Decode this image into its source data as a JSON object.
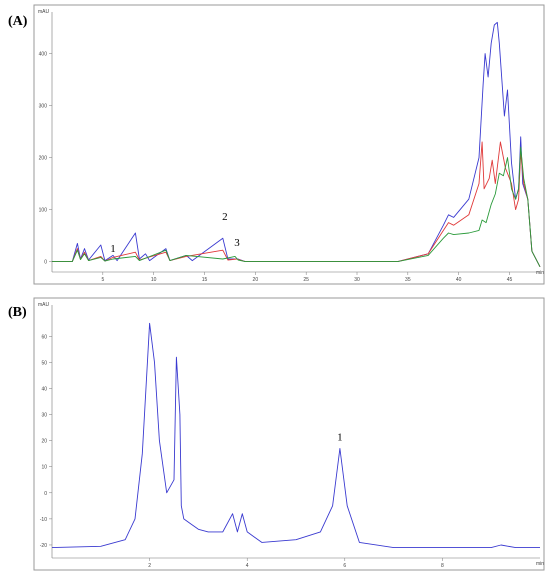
{
  "chart_data": [
    {
      "type": "line",
      "panel_label": "(A)",
      "y_unit": "mAU",
      "x_unit": "min",
      "xlim": [
        0,
        48
      ],
      "ylim": [
        -20,
        480
      ],
      "x_ticks": [
        "5",
        "10",
        "15",
        "20",
        "25",
        "30",
        "35",
        "40",
        "45"
      ],
      "y_ticks": [
        "0",
        "100",
        "200",
        "300",
        "400"
      ],
      "peak_labels": [
        {
          "text": "1",
          "x": 6.0,
          "y": 18
        },
        {
          "text": "2",
          "x": 17.0,
          "y": 80
        },
        {
          "text": "3",
          "x": 18.2,
          "y": 30
        }
      ],
      "series": [
        {
          "color": "#3a3ad0",
          "points": [
            [
              0,
              0
            ],
            [
              2,
              0
            ],
            [
              2.5,
              35
            ],
            [
              2.8,
              5
            ],
            [
              3.2,
              25
            ],
            [
              3.6,
              3
            ],
            [
              4.8,
              32
            ],
            [
              5.2,
              2
            ],
            [
              6,
              12
            ],
            [
              6.4,
              2
            ],
            [
              8.2,
              55
            ],
            [
              8.6,
              5
            ],
            [
              9.2,
              15
            ],
            [
              9.6,
              2
            ],
            [
              11.2,
              25
            ],
            [
              11.6,
              2
            ],
            [
              13.2,
              12
            ],
            [
              13.8,
              2
            ],
            [
              16.8,
              45
            ],
            [
              17.3,
              5
            ],
            [
              18.3,
              5
            ],
            [
              19,
              0
            ],
            [
              34,
              0
            ],
            [
              37,
              15
            ],
            [
              38.5,
              70
            ],
            [
              39,
              90
            ],
            [
              39.5,
              85
            ],
            [
              41,
              120
            ],
            [
              42,
              200
            ],
            [
              42.4,
              340
            ],
            [
              42.6,
              400
            ],
            [
              42.9,
              355
            ],
            [
              43.2,
              420
            ],
            [
              43.5,
              455
            ],
            [
              43.8,
              460
            ],
            [
              44,
              420
            ],
            [
              44.5,
              280
            ],
            [
              44.8,
              330
            ],
            [
              45.2,
              190
            ],
            [
              45.6,
              120
            ],
            [
              45.9,
              140
            ],
            [
              46.1,
              240
            ],
            [
              46.3,
              150
            ],
            [
              46.8,
              120
            ],
            [
              47.2,
              20
            ],
            [
              48,
              -10
            ]
          ]
        },
        {
          "color": "#e03a3a",
          "points": [
            [
              0,
              0
            ],
            [
              2,
              0
            ],
            [
              2.5,
              25
            ],
            [
              2.8,
              4
            ],
            [
              3.2,
              18
            ],
            [
              3.6,
              2
            ],
            [
              4.8,
              10
            ],
            [
              5.2,
              1
            ],
            [
              6,
              8
            ],
            [
              8.2,
              18
            ],
            [
              8.6,
              3
            ],
            [
              11.2,
              18
            ],
            [
              11.6,
              2
            ],
            [
              13.2,
              10
            ],
            [
              16.8,
              22
            ],
            [
              17.3,
              3
            ],
            [
              18.2,
              5
            ],
            [
              19,
              0
            ],
            [
              34,
              0
            ],
            [
              37,
              15
            ],
            [
              38.5,
              60
            ],
            [
              39,
              75
            ],
            [
              39.5,
              70
            ],
            [
              41,
              90
            ],
            [
              42,
              150
            ],
            [
              42.3,
              230
            ],
            [
              42.5,
              140
            ],
            [
              43,
              160
            ],
            [
              43.3,
              195
            ],
            [
              43.6,
              150
            ],
            [
              44.1,
              230
            ],
            [
              44.6,
              180
            ],
            [
              45.2,
              150
            ],
            [
              45.6,
              100
            ],
            [
              45.9,
              120
            ],
            [
              46.1,
              210
            ],
            [
              46.4,
              150
            ],
            [
              46.8,
              120
            ],
            [
              47.2,
              20
            ],
            [
              48,
              -10
            ]
          ]
        },
        {
          "color": "#2a9a3a",
          "points": [
            [
              0,
              0
            ],
            [
              2,
              0
            ],
            [
              2.5,
              22
            ],
            [
              2.8,
              4
            ],
            [
              3.2,
              15
            ],
            [
              3.6,
              2
            ],
            [
              4.8,
              8
            ],
            [
              5.2,
              1
            ],
            [
              6,
              5
            ],
            [
              8.2,
              10
            ],
            [
              8.6,
              2
            ],
            [
              11.2,
              22
            ],
            [
              11.6,
              2
            ],
            [
              13.2,
              12
            ],
            [
              16.8,
              5
            ],
            [
              18,
              10
            ],
            [
              18.3,
              3
            ],
            [
              19,
              0
            ],
            [
              34,
              0
            ],
            [
              37,
              12
            ],
            [
              38.5,
              45
            ],
            [
              39,
              55
            ],
            [
              39.5,
              52
            ],
            [
              41,
              55
            ],
            [
              42,
              60
            ],
            [
              42.3,
              80
            ],
            [
              42.7,
              75
            ],
            [
              43.2,
              110
            ],
            [
              43.6,
              130
            ],
            [
              44,
              170
            ],
            [
              44.4,
              165
            ],
            [
              44.8,
              200
            ],
            [
              45.2,
              140
            ],
            [
              45.6,
              120
            ],
            [
              45.9,
              140
            ],
            [
              46.1,
              220
            ],
            [
              46.4,
              160
            ],
            [
              46.8,
              120
            ],
            [
              47.2,
              20
            ],
            [
              48,
              -10
            ]
          ]
        }
      ]
    },
    {
      "type": "line",
      "panel_label": "(B)",
      "y_unit": "mAU",
      "x_unit": "min",
      "xlim": [
        0,
        10
      ],
      "ylim": [
        -25,
        72
      ],
      "x_ticks": [
        "2",
        "4",
        "6",
        "8"
      ],
      "y_ticks": [
        "-20",
        "-10",
        "0",
        "10",
        "20",
        "30",
        "40",
        "50",
        "60"
      ],
      "peak_labels": [
        {
          "text": "1",
          "x": 5.9,
          "y": 20
        }
      ],
      "series": [
        {
          "color": "#3a3ad0",
          "points": [
            [
              0,
              -21
            ],
            [
              1,
              -20.5
            ],
            [
              1.5,
              -18
            ],
            [
              1.7,
              -10
            ],
            [
              1.85,
              15
            ],
            [
              2,
              65
            ],
            [
              2.1,
              50
            ],
            [
              2.2,
              20
            ],
            [
              2.35,
              0
            ],
            [
              2.5,
              5
            ],
            [
              2.55,
              52
            ],
            [
              2.62,
              30
            ],
            [
              2.65,
              -5
            ],
            [
              2.7,
              -10
            ],
            [
              2.85,
              -12
            ],
            [
              3,
              -14
            ],
            [
              3.2,
              -15
            ],
            [
              3.5,
              -15
            ],
            [
              3.7,
              -8
            ],
            [
              3.8,
              -15
            ],
            [
              3.9,
              -8
            ],
            [
              4,
              -15
            ],
            [
              4.3,
              -19
            ],
            [
              5,
              -18
            ],
            [
              5.5,
              -15
            ],
            [
              5.75,
              -5
            ],
            [
              5.9,
              17
            ],
            [
              6.05,
              -5
            ],
            [
              6.3,
              -19
            ],
            [
              7,
              -21
            ],
            [
              8,
              -21
            ],
            [
              9,
              -21
            ],
            [
              9.2,
              -20
            ],
            [
              9.5,
              -21
            ],
            [
              10,
              -21
            ]
          ]
        }
      ]
    }
  ]
}
